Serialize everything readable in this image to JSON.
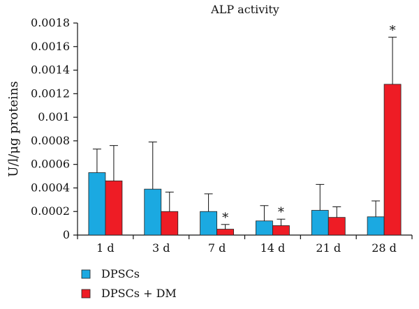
{
  "chart_data": {
    "type": "bar",
    "title": "ALP activity",
    "xlabel": "",
    "ylabel": "U/l/μg proteins",
    "ylim": [
      0,
      0.0018
    ],
    "yticks": [
      "0",
      "0.0002",
      "0.0004",
      "0.0006",
      "0.0008",
      "0.001",
      "0.0012",
      "0.0014",
      "0.0016",
      "0.0018"
    ],
    "ytick_values": [
      0,
      0.0002,
      0.0004,
      0.0006,
      0.0008,
      0.001,
      0.0012,
      0.0014,
      0.0016,
      0.0018
    ],
    "categories": [
      "1 d",
      "3 d",
      "7 d",
      "14 d",
      "21 d",
      "28 d"
    ],
    "series": [
      {
        "name": "DPSCs",
        "color": "#1ba9e1",
        "values": [
          0.00053,
          0.00039,
          0.0002,
          0.00012,
          0.00021,
          0.000155
        ],
        "errors": [
          0.0002,
          0.0004,
          0.00015,
          0.00013,
          0.00022,
          0.000135
        ]
      },
      {
        "name": "DPSCs + DM",
        "color": "#ee1c25",
        "values": [
          0.00046,
          0.0002,
          5e-05,
          8e-05,
          0.00015,
          0.00128
        ],
        "errors": [
          0.0003,
          0.000165,
          4e-05,
          5.5e-05,
          9e-05,
          0.0004
        ]
      }
    ],
    "annotations": [
      {
        "category": "7 d",
        "text": "*"
      },
      {
        "category": "14 d",
        "text": "*"
      },
      {
        "category": "28 d",
        "text": "*"
      }
    ],
    "legend_position": "bottom-left",
    "grid": false
  }
}
